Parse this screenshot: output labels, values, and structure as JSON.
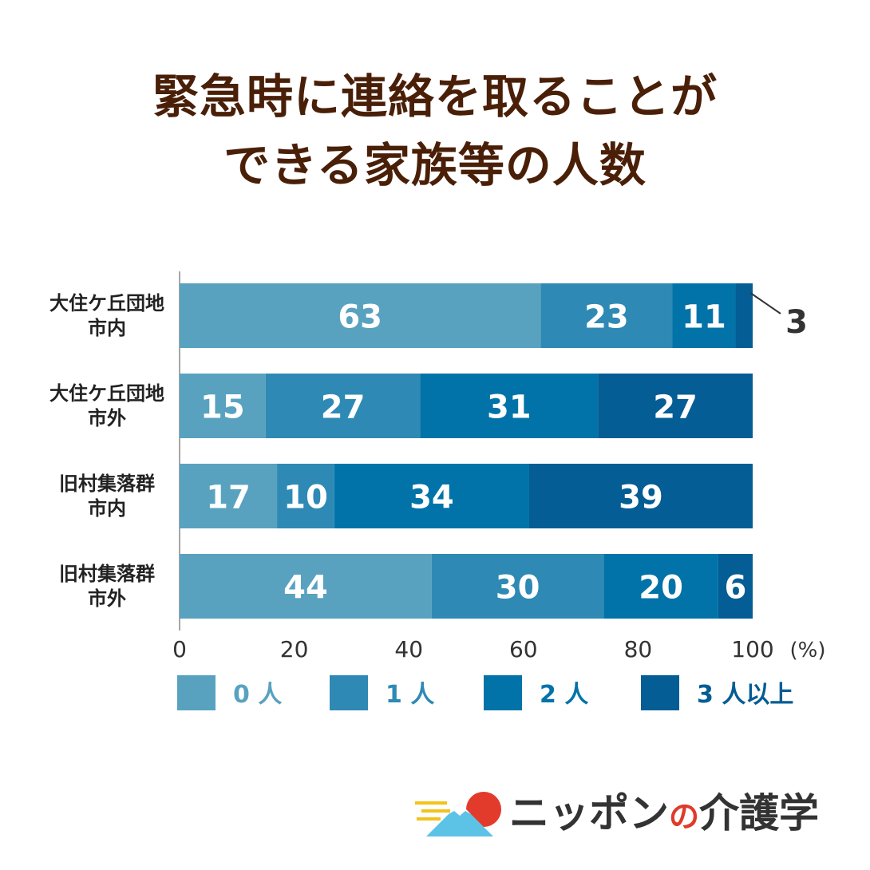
{
  "title_lines": [
    "緊急時に連絡を取ることが",
    "できる家族等の人数"
  ],
  "chart_data": {
    "type": "bar",
    "orientation": "horizontal",
    "stacked": true,
    "percent": true,
    "categories": [
      [
        "大住ケ丘団地",
        "市内"
      ],
      [
        "大住ケ丘団地",
        "市外"
      ],
      [
        "旧村集落群",
        "市内"
      ],
      [
        "旧村集落群",
        "市外"
      ]
    ],
    "series": [
      {
        "name": "0人",
        "values": [
          63,
          15,
          17,
          44
        ],
        "color": "#58a2c0"
      },
      {
        "name": "1人",
        "values": [
          23,
          27,
          10,
          30
        ],
        "color": "#2e8ab4"
      },
      {
        "name": "2人",
        "values": [
          11,
          31,
          34,
          20
        ],
        "color": "#0273a8"
      },
      {
        "name": "3人以上",
        "values": [
          3,
          27,
          39,
          6
        ],
        "color": "#045d94"
      }
    ],
    "legend_labels": [
      "0 人",
      "1 人",
      "2 人",
      "3 人以上"
    ],
    "xlim": [
      0,
      100
    ],
    "xticks": [
      0,
      20,
      40,
      60,
      80,
      100
    ],
    "unit_label": "(%)",
    "legend_position": "bottom",
    "grid": false
  },
  "logo": {
    "text_pre": "ニッポン",
    "text_no": "の",
    "text_post": "介護学"
  }
}
